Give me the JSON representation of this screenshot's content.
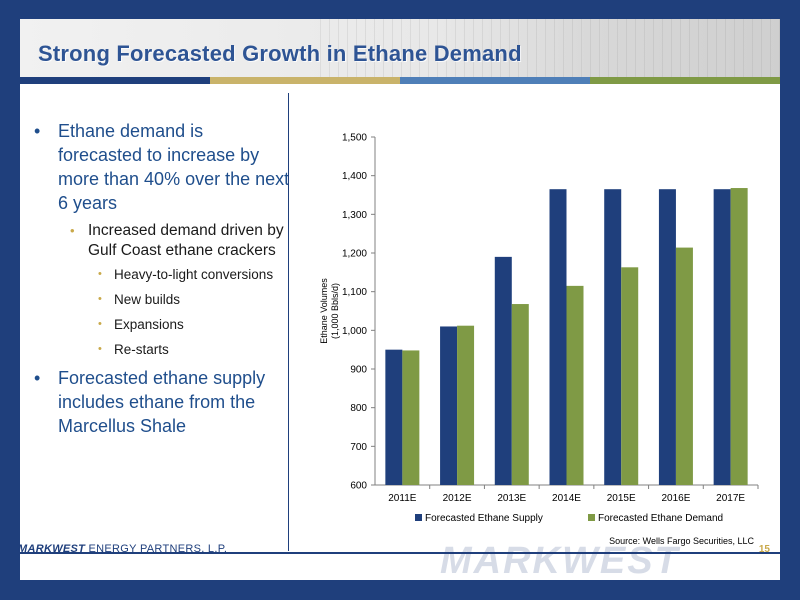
{
  "slide": {
    "title": "Strong Forecasted Growth in Ethane Demand",
    "bullets": [
      {
        "level": 1,
        "text": "Ethane demand is forecasted to increase by more than 40% over the next 6 years"
      },
      {
        "level": 2,
        "text": "Increased demand driven by Gulf Coast ethane crackers"
      },
      {
        "level": 3,
        "text": "Heavy-to-light conversions"
      },
      {
        "level": 3,
        "text": "New builds"
      },
      {
        "level": 3,
        "text": "Expansions"
      },
      {
        "level": 3,
        "text": "Re-starts"
      },
      {
        "level": 1,
        "text": "Forecasted ethane supply includes ethane from the Marcellus Shale"
      }
    ],
    "source": "Source: Wells Fargo Securities, LLC",
    "footer_company_bold": "MARKWEST",
    "footer_company_rest": " ENERGY PARTNERS, L.P.",
    "watermark": "MARKWEST",
    "page_number": "15"
  },
  "colors": {
    "navy": "#1f3f7c",
    "title_blue": "#2e5494",
    "supply": "#1f3f7c",
    "demand": "#7f9a45",
    "gold": "#c9a94a"
  },
  "chart_data": {
    "type": "bar",
    "categories": [
      "2011E",
      "2012E",
      "2013E",
      "2014E",
      "2015E",
      "2016E",
      "2017E"
    ],
    "series": [
      {
        "name": "Forecasted Ethane Supply",
        "values": [
          950,
          1010,
          1190,
          1365,
          1365,
          1365,
          1365
        ]
      },
      {
        "name": "Forecasted Ethane Demand",
        "values": [
          948,
          1012,
          1068,
          1115,
          1163,
          1214,
          1368
        ]
      }
    ],
    "ylabel_line1": "Ethane Volumes",
    "ylabel_line2": "(1,000 Bbls/d)",
    "ylim": [
      600,
      1500
    ],
    "yticks": [
      600,
      700,
      800,
      900,
      1000,
      1100,
      1200,
      1300,
      1400,
      1500
    ],
    "ytick_labels": [
      "600",
      "700",
      "800",
      "900",
      "1,000",
      "1,100",
      "1,200",
      "1,300",
      "1,400",
      "1,500"
    ],
    "grid": false,
    "legend_position": "bottom"
  }
}
